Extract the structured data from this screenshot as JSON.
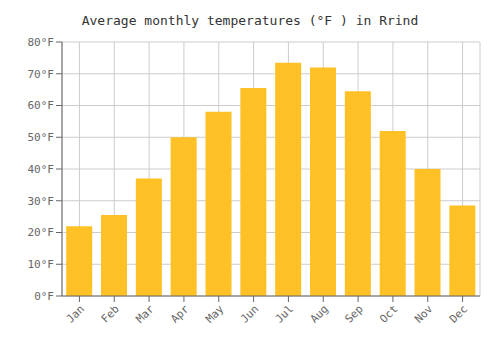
{
  "chart_data": {
    "type": "bar",
    "title": "Average monthly temperatures (°F ) in Rrind",
    "categories": [
      "Jan",
      "Feb",
      "Mar",
      "Apr",
      "May",
      "Jun",
      "Jul",
      "Aug",
      "Sep",
      "Oct",
      "Nov",
      "Dec"
    ],
    "values": [
      22,
      25.5,
      37,
      50,
      58,
      65.5,
      73.5,
      72,
      64.5,
      52,
      40,
      28.5
    ],
    "color": "#FFC125",
    "ylim": [
      0,
      80
    ],
    "yticks": [
      {
        "value": 0,
        "label": "0°F"
      },
      {
        "value": 10,
        "label": "10°F"
      },
      {
        "value": 20,
        "label": "20°F"
      },
      {
        "value": 30,
        "label": "30°F"
      },
      {
        "value": 40,
        "label": "40°F"
      },
      {
        "value": 50,
        "label": "50°F"
      },
      {
        "value": 60,
        "label": "60°F"
      },
      {
        "value": 70,
        "label": "70°F"
      },
      {
        "value": 80,
        "label": "80°F"
      }
    ],
    "grid": true
  }
}
